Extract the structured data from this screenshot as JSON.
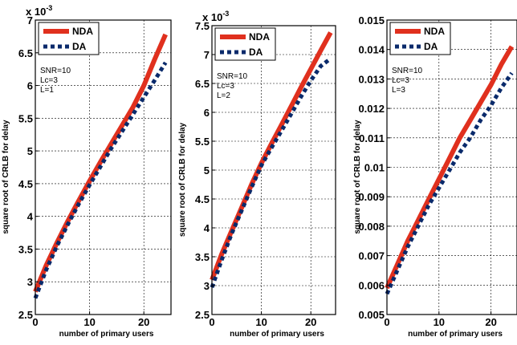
{
  "chart_data": [
    {
      "type": "line",
      "exponent": "x 10",
      "exponent_power": "-3",
      "xlabel": "number of primary users",
      "ylabel": "square root of CRLB for delay",
      "xlim": [
        0,
        25
      ],
      "ylim": [
        2.5,
        7
      ],
      "xticks": [
        "0",
        "10",
        "20"
      ],
      "yticks": [
        "2.5",
        "3",
        "3.5",
        "4",
        "4.5",
        "5",
        "5.5",
        "6",
        "6.5",
        "7"
      ],
      "annotations": [
        "SNR=10",
        "Lc=3",
        "L=1"
      ],
      "grid": true,
      "legend_position": "top-left",
      "series": [
        {
          "name": "NDA",
          "color": "#e0301e",
          "style": "solid",
          "x": [
            0,
            2,
            4,
            6,
            8,
            10,
            12,
            14,
            16,
            18,
            20,
            22,
            24
          ],
          "y": [
            2.85,
            3.25,
            3.6,
            3.93,
            4.24,
            4.54,
            4.83,
            5.11,
            5.39,
            5.67,
            6.0,
            6.4,
            6.78
          ]
        },
        {
          "name": "DA",
          "color": "#0a2a6b",
          "style": "dotted",
          "x": [
            0,
            2,
            4,
            6,
            8,
            10,
            12,
            14,
            16,
            18,
            20,
            22,
            24
          ],
          "y": [
            2.75,
            3.18,
            3.55,
            3.88,
            4.19,
            4.48,
            4.76,
            5.04,
            5.3,
            5.56,
            5.82,
            6.08,
            6.35
          ]
        }
      ]
    },
    {
      "type": "line",
      "exponent": "x 10",
      "exponent_power": "-3",
      "xlabel": "number of primary users",
      "ylabel": "square root of CRLB for delay",
      "xlim": [
        0,
        25
      ],
      "ylim": [
        2.5,
        7.5
      ],
      "xticks": [
        "0",
        "10",
        "20"
      ],
      "yticks": [
        "2.5",
        "3",
        "3.5",
        "4",
        "4.5",
        "5",
        "5.5",
        "6",
        "6.5",
        "7",
        "7.5"
      ],
      "annotations": [
        "SNR=10",
        "Lc=3",
        "L=2"
      ],
      "grid": true,
      "legend_position": "top-left",
      "series": [
        {
          "name": "NDA",
          "color": "#e0301e",
          "style": "solid",
          "x": [
            0,
            2,
            4,
            6,
            8,
            10,
            12,
            14,
            16,
            18,
            20,
            22,
            24
          ],
          "y": [
            3.1,
            3.55,
            3.95,
            4.35,
            4.75,
            5.12,
            5.45,
            5.77,
            6.1,
            6.43,
            6.75,
            7.07,
            7.38
          ]
        },
        {
          "name": "DA",
          "color": "#0a2a6b",
          "style": "dotted",
          "x": [
            0,
            2,
            4,
            6,
            8,
            10,
            12,
            14,
            16,
            18,
            20,
            22,
            24
          ],
          "y": [
            2.97,
            3.45,
            3.9,
            4.3,
            4.7,
            5.08,
            5.38,
            5.67,
            5.97,
            6.27,
            6.55,
            6.8,
            6.93
          ]
        }
      ]
    },
    {
      "type": "line",
      "exponent": "",
      "exponent_power": "",
      "xlabel": "number of primary users",
      "ylabel": "square root of CRLB for delay",
      "xlim": [
        0,
        25
      ],
      "ylim": [
        0.005,
        0.015
      ],
      "xticks": [
        "0",
        "10",
        "20"
      ],
      "yticks": [
        "0.005",
        "0.006",
        "0.007",
        "0.008",
        "0.009",
        "0.01",
        "0.011",
        "0.012",
        "0.013",
        "0.014",
        "0.015"
      ],
      "annotations": [
        "SNR=10",
        "Lc=3",
        "L=3"
      ],
      "grid": true,
      "legend_position": "top-left",
      "series": [
        {
          "name": "NDA",
          "color": "#e0301e",
          "style": "solid",
          "x": [
            0,
            2,
            4,
            6,
            8,
            10,
            12,
            14,
            16,
            18,
            20,
            22,
            24
          ],
          "y": [
            0.0059,
            0.0067,
            0.0075,
            0.0082,
            0.0089,
            0.0096,
            0.0103,
            0.011,
            0.0116,
            0.0122,
            0.0128,
            0.0135,
            0.0141
          ]
        },
        {
          "name": "DA",
          "color": "#0a2a6b",
          "style": "dotted",
          "x": [
            0,
            2,
            4,
            6,
            8,
            10,
            12,
            14,
            16,
            18,
            20,
            22,
            24
          ],
          "y": [
            0.0057,
            0.0065,
            0.0073,
            0.008,
            0.0087,
            0.0093,
            0.0099,
            0.0105,
            0.011,
            0.0116,
            0.0121,
            0.0127,
            0.0132
          ]
        }
      ]
    }
  ]
}
